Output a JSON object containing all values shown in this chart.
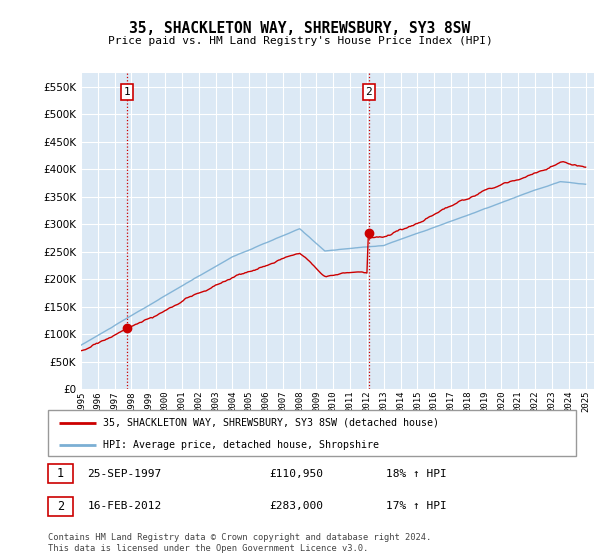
{
  "title": "35, SHACKLETON WAY, SHREWSBURY, SY3 8SW",
  "subtitle": "Price paid vs. HM Land Registry's House Price Index (HPI)",
  "hpi_color": "#7bafd4",
  "price_color": "#cc0000",
  "vline_color": "#cc0000",
  "background_color": "#ffffff",
  "plot_bg_color": "#dce9f5",
  "grid_color": "#ffffff",
  "ylim": [
    0,
    575000
  ],
  "yticks": [
    0,
    50000,
    100000,
    150000,
    200000,
    250000,
    300000,
    350000,
    400000,
    450000,
    500000,
    550000
  ],
  "xlim_start": 1995.0,
  "xlim_end": 2025.5,
  "xticks": [
    1995,
    1996,
    1997,
    1998,
    1999,
    2000,
    2001,
    2002,
    2003,
    2004,
    2005,
    2006,
    2007,
    2008,
    2009,
    2010,
    2011,
    2012,
    2013,
    2014,
    2015,
    2016,
    2017,
    2018,
    2019,
    2020,
    2021,
    2022,
    2023,
    2024,
    2025
  ],
  "sale1_x": 1997.73,
  "sale1_y": 110950,
  "sale1_label": "1",
  "sale1_date": "25-SEP-1997",
  "sale1_price": "£110,950",
  "sale1_hpi": "18% ↑ HPI",
  "sale2_x": 2012.12,
  "sale2_y": 283000,
  "sale2_label": "2",
  "sale2_date": "16-FEB-2012",
  "sale2_price": "£283,000",
  "sale2_hpi": "17% ↑ HPI",
  "legend_line1": "35, SHACKLETON WAY, SHREWSBURY, SY3 8SW (detached house)",
  "legend_line2": "HPI: Average price, detached house, Shropshire",
  "footnote": "Contains HM Land Registry data © Crown copyright and database right 2024.\nThis data is licensed under the Open Government Licence v3.0."
}
